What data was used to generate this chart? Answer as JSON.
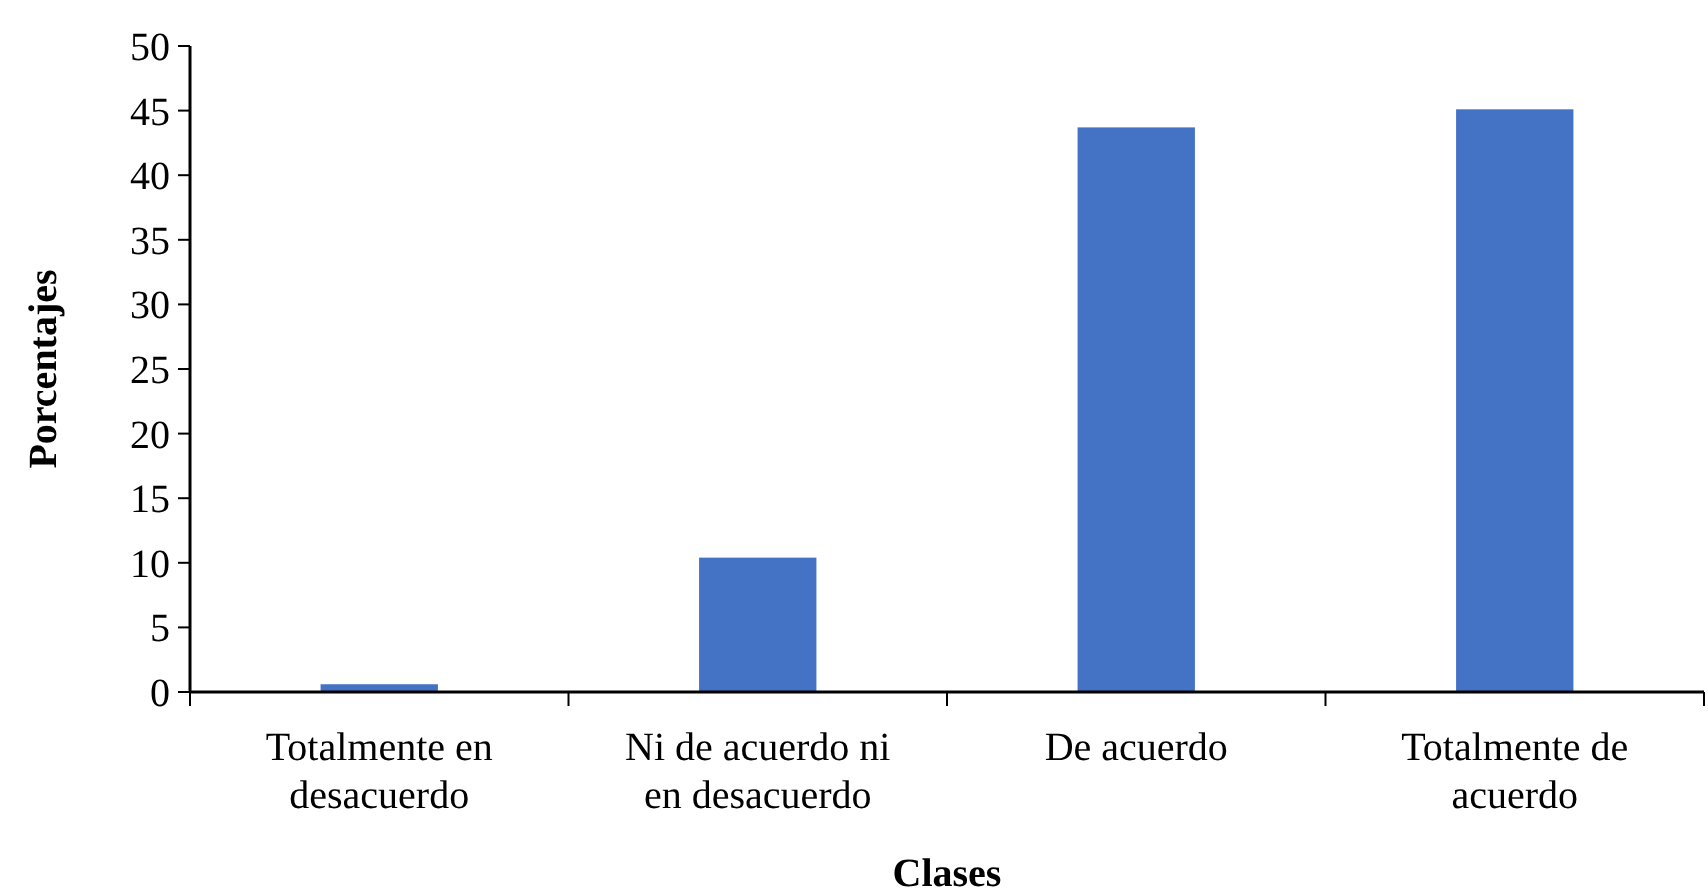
{
  "chart_data": {
    "type": "bar",
    "xlabel": "Clases",
    "ylabel": "Porcentajes",
    "categories": [
      "Totalmente en desacuerdo",
      "Ni de acuerdo ni en desacuerdo",
      "De acuerdo",
      "Totalmente de acuerdo"
    ],
    "values": [
      0.6,
      10.4,
      43.7,
      45.1
    ],
    "color": "#4472c4",
    "ylim": [
      0,
      50
    ],
    "yticks": [
      0,
      5,
      10,
      15,
      20,
      25,
      30,
      35,
      40,
      45,
      50
    ],
    "grid": false
  }
}
